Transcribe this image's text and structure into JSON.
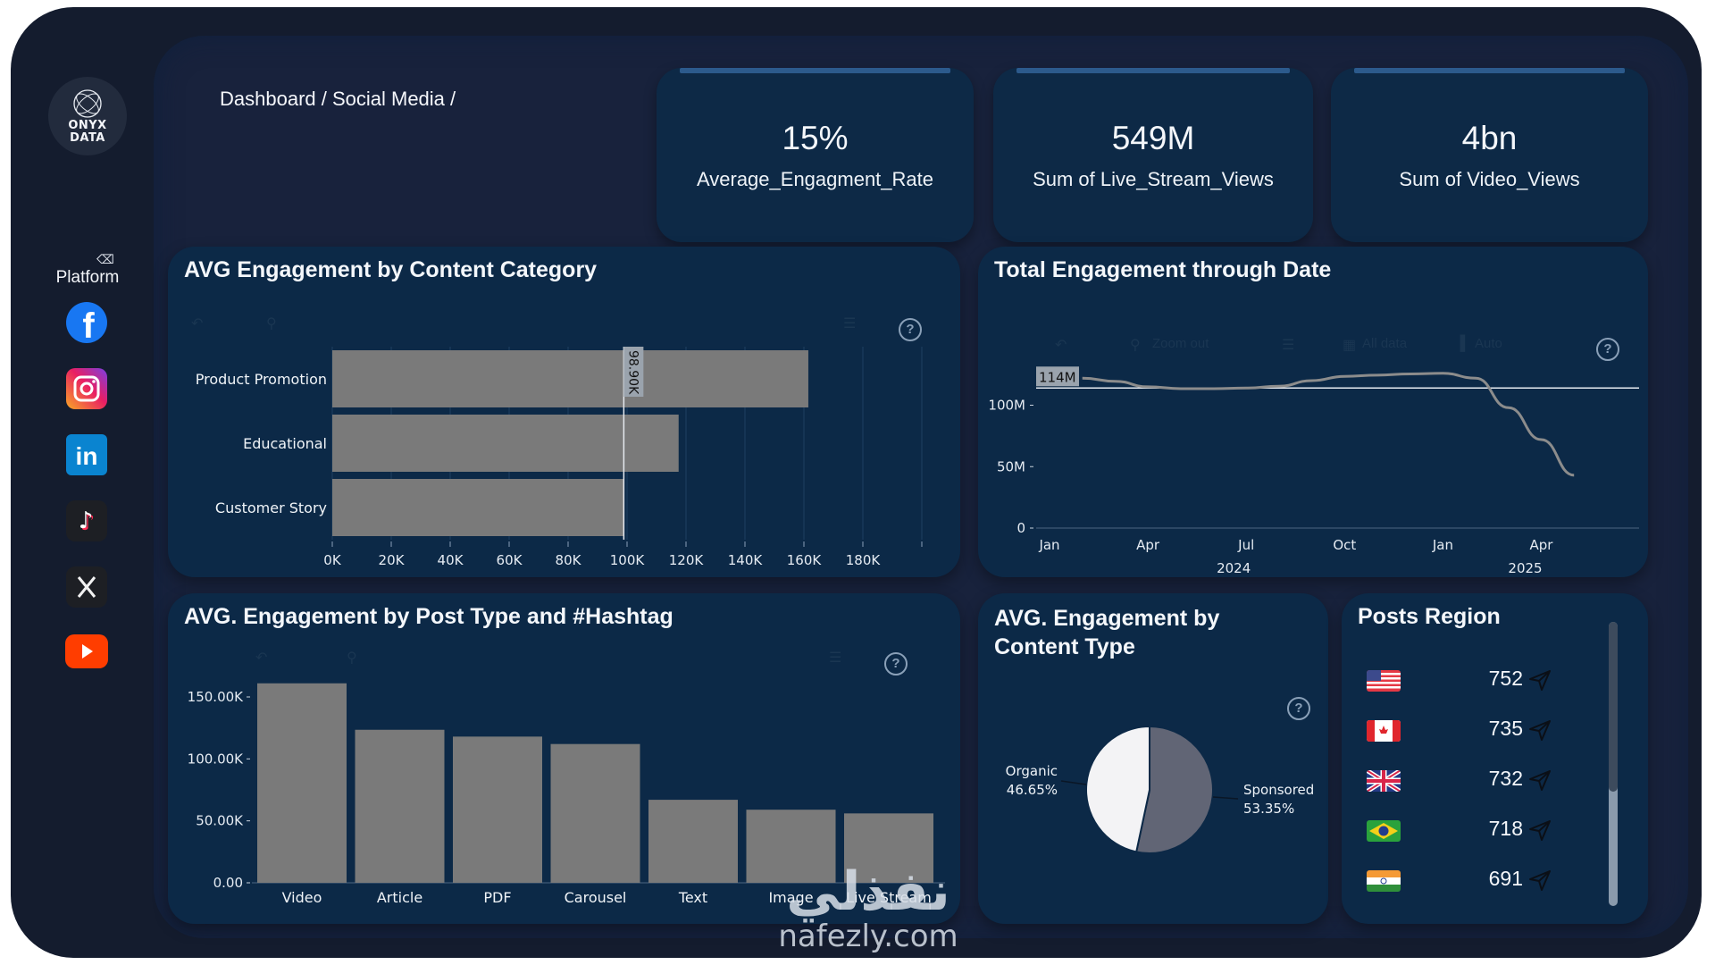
{
  "brand": {
    "logo_line1": "ONYX",
    "logo_line2": "DATA"
  },
  "breadcrumb": "Dashboard / Social Media /",
  "sidebar": {
    "filter_label": "Platform",
    "platforms": [
      {
        "name": "Facebook",
        "icon": "facebook-icon",
        "color": "#1877f2"
      },
      {
        "name": "Instagram",
        "icon": "instagram-icon",
        "color": "#e1306c"
      },
      {
        "name": "LinkedIn",
        "icon": "linkedin-icon",
        "color": "#0a66c2"
      },
      {
        "name": "TikTok",
        "icon": "tiktok-icon",
        "color": "#1e1e1e"
      },
      {
        "name": "X",
        "icon": "x-icon",
        "color": "#1e1e1e"
      },
      {
        "name": "YouTube",
        "icon": "youtube-icon",
        "color": "#ff3000"
      }
    ]
  },
  "kpis": [
    {
      "value": "15%",
      "label": "Average_Engagment_Rate"
    },
    {
      "value": "549M",
      "label": "Sum of Live_Stream_Views"
    },
    {
      "value": "4bn",
      "label": "Sum of Video_Views"
    }
  ],
  "toolbar": {
    "help": "?",
    "line_chart_zoom_label": "Zoom out",
    "line_chart_filter_label": "All data",
    "line_chart_agg_label": "Auto"
  },
  "chart_data": [
    {
      "type": "bar",
      "orientation": "horizontal",
      "title": "AVG Engagement by Content Category",
      "categories": [
        "Product Promotion",
        "Educational",
        "Customer Story"
      ],
      "values": [
        161500,
        117500,
        98900
      ],
      "xlim": [
        0,
        200000
      ],
      "xticks": [
        "0K",
        "20K",
        "40K",
        "60K",
        "80K",
        "100K",
        "120K",
        "140K",
        "160K",
        "180K"
      ],
      "reference_line": {
        "value": 98900,
        "label": "98.90K"
      },
      "grid": true,
      "color": "#7a7a7a"
    },
    {
      "type": "line",
      "title": "Total Engagement through Date",
      "x": [
        "2024-02",
        "2024-03",
        "2024-04",
        "2024-05",
        "2024-06",
        "2024-07",
        "2024-08",
        "2024-09",
        "2024-10",
        "2024-11",
        "2024-12",
        "2025-01",
        "2025-02",
        "2025-03",
        "2025-04",
        "2025-05"
      ],
      "values": [
        122,
        119.5,
        115,
        113.5,
        113.5,
        114,
        115.5,
        120,
        123.5,
        124.5,
        125.5,
        126,
        122,
        98,
        72,
        43
      ],
      "unit": "M",
      "ylim": [
        0,
        130
      ],
      "yticks": [
        "0",
        "50M",
        "100M"
      ],
      "xticks": [
        "Jan",
        "Apr",
        "Jul",
        "Oct",
        "Jan",
        "Apr"
      ],
      "year_labels": [
        "2024",
        "2025"
      ],
      "reference_line": {
        "value": 114,
        "label": "114M"
      },
      "color": "#8c8c8c"
    },
    {
      "type": "bar",
      "title": "AVG. Engagement by Post Type and #Hashtag",
      "categories": [
        "Video",
        "Article",
        "PDF",
        "Carousel",
        "Text",
        "Image",
        "Live Stream"
      ],
      "values": [
        161000,
        123500,
        118000,
        112000,
        67000,
        59000,
        56000
      ],
      "ylim": [
        0,
        170000
      ],
      "yticks": [
        "0.00",
        "50.00K",
        "100.00K",
        "150.00K"
      ],
      "color": "#7a7a7a"
    },
    {
      "type": "pie",
      "title": "AVG. Engagement by Content Type",
      "slices": [
        {
          "label": "Sponsored",
          "value": 53.35,
          "display": "53.35%",
          "color": "#616575"
        },
        {
          "label": "Organic",
          "value": 46.65,
          "display": "46.65%",
          "color": "#f3f3f5"
        }
      ]
    }
  ],
  "posts_region": {
    "title": "Posts Region",
    "rows": [
      {
        "country": "United States",
        "flag": "us-flag-icon",
        "value": "752"
      },
      {
        "country": "Canada",
        "flag": "ca-flag-icon",
        "value": "735"
      },
      {
        "country": "United Kingdom",
        "flag": "gb-flag-icon",
        "value": "732"
      },
      {
        "country": "Brazil",
        "flag": "br-flag-icon",
        "value": "718"
      },
      {
        "country": "India",
        "flag": "in-flag-icon",
        "value": "691"
      }
    ]
  },
  "watermark": {
    "arabic": "نفذلي",
    "latin": "nafezly.com"
  }
}
